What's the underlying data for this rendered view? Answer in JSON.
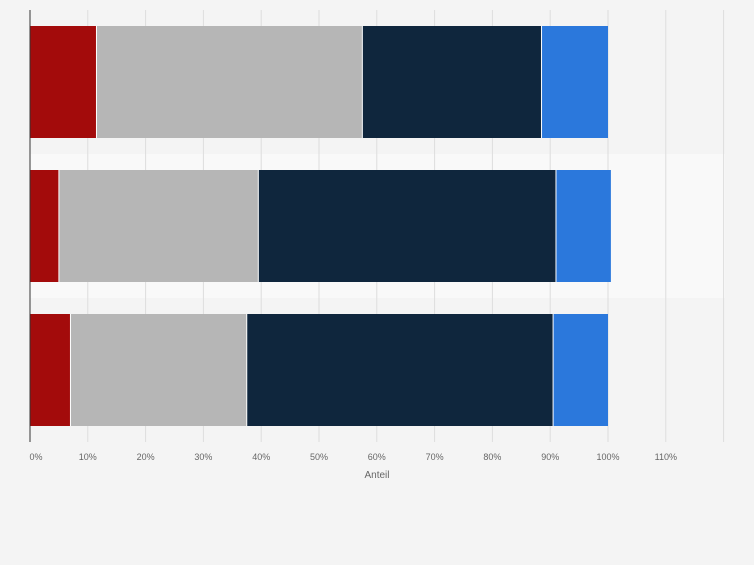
{
  "chart_data": {
    "type": "bar",
    "orientation": "horizontal",
    "stacked": true,
    "categories": [
      "",
      "",
      ""
    ],
    "series": [
      {
        "color": "#a30b0b",
        "values": [
          11.5,
          5.0,
          7.0
        ]
      },
      {
        "color": "#b6b6b6",
        "values": [
          46.0,
          34.5,
          30.5
        ]
      },
      {
        "color": "#0f263d",
        "values": [
          31.0,
          51.5,
          53.0
        ]
      },
      {
        "color": "#2b78dc",
        "values": [
          11.5,
          9.5,
          9.5
        ]
      }
    ],
    "xlim": [
      0,
      120
    ],
    "xticks": [
      "0%",
      "10%",
      "20%",
      "30%",
      "40%",
      "50%",
      "60%",
      "70%",
      "80%",
      "90%",
      "100%",
      "110%"
    ],
    "xlabel": "Anteil",
    "ylabel": "",
    "title": "",
    "grid": true,
    "legend": "none"
  }
}
